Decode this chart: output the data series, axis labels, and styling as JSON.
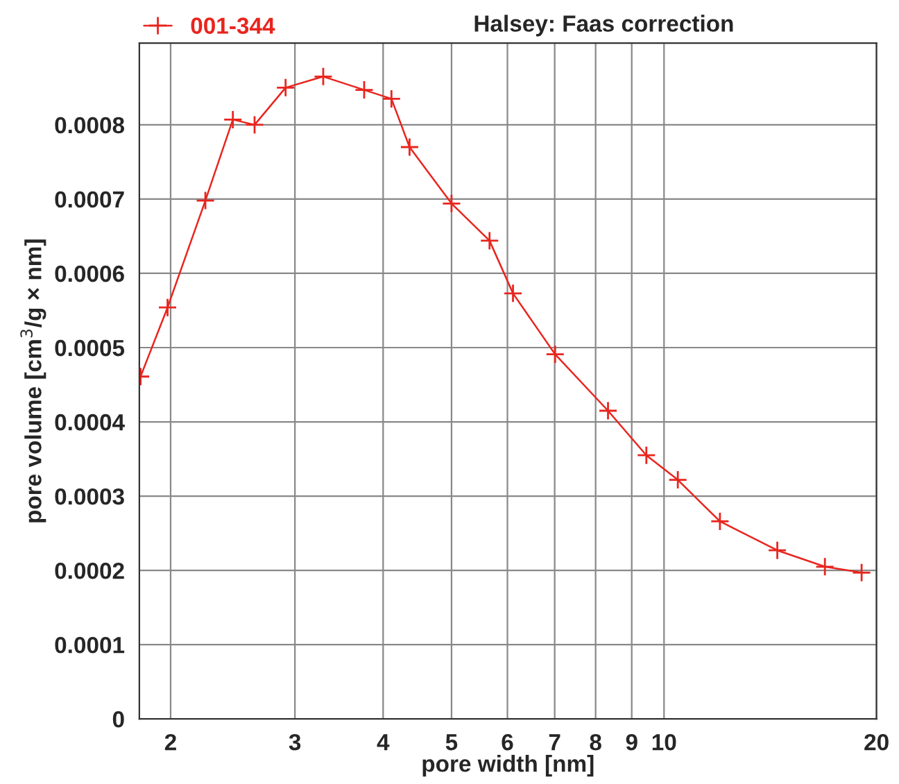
{
  "chart_data": {
    "type": "line",
    "title": "Halsey: Faas correction",
    "xlabel": "pore width [nm]",
    "ylabel": "pore volume [cm$^{3}$/g × nm]",
    "x": [
      1.813,
      1.98,
      2.24,
      2.45,
      2.63,
      2.91,
      3.29,
      3.76,
      4.11,
      4.36,
      5.0,
      5.66,
      6.11,
      7.01,
      8.33,
      9.44,
      10.46,
      12.0,
      14.47,
      16.9,
      19.05
    ],
    "series": [
      {
        "name": "001-344",
        "color": "#e8251e",
        "values": [
          0.000461,
          0.000554,
          0.000698,
          0.000807,
          0.0008,
          0.00085,
          0.000865,
          0.000847,
          0.000835,
          0.00077,
          0.000694,
          0.000644,
          0.000573,
          0.000491,
          0.000415,
          0.000355,
          0.000322,
          0.000266,
          0.000227,
          0.000205,
          0.000197
        ]
      }
    ],
    "log": "x",
    "xlim": [
      1.806,
      20
    ],
    "xticks": [
      2,
      3,
      4,
      5,
      6,
      7,
      8,
      9,
      10,
      20
    ],
    "ylim": [
      0,
      0.00091
    ],
    "yticks": [
      0,
      0.0001,
      0.0002,
      0.0003,
      0.0004,
      0.0005,
      0.0006,
      0.0007,
      0.0008
    ],
    "grid": true,
    "legend": "top left",
    "marker": "cross",
    "line_style": "solid"
  }
}
